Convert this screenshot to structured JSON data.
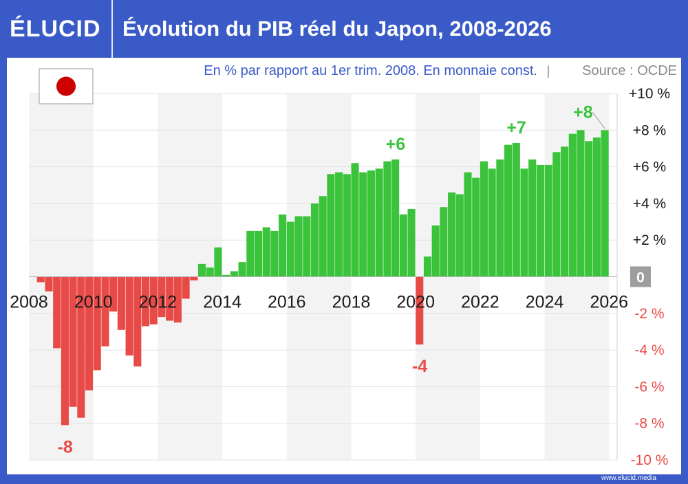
{
  "brand": {
    "logo_text": "ÉLUCID",
    "url_text": "www.elucid.media"
  },
  "header": {
    "title": "Évolution du PIB réel du Japon, 2008-2026"
  },
  "colors": {
    "header_blue": "#3a5bc7",
    "positive": "#3cc33c",
    "negative": "#e84b47",
    "subtitle_blue": "#3a5bc7",
    "source_grey": "#8a8a8a",
    "flag_red": "#cc0000"
  },
  "icons": {
    "flag": "japan-flag-icon"
  },
  "chart_data": {
    "type": "bar",
    "subtitle": "En % par rapport au 1er trim. 2008. En monnaie const.",
    "separator": "|",
    "source": "Source : OCDE",
    "unit": "%",
    "ylim": [
      -10,
      10
    ],
    "xlim": [
      2008,
      2026.25
    ],
    "x_ticks": [
      "2008",
      "2010",
      "2012",
      "2014",
      "2016",
      "2018",
      "2020",
      "2022",
      "2024",
      "2026"
    ],
    "y_ticks": [
      "+10 %",
      "+8 %",
      "+6 %",
      "+4 %",
      "+2 %",
      "0",
      "-2 %",
      "-4 %",
      "-6 %",
      "-8 %",
      "-10 %"
    ],
    "values": [
      0,
      -0.3,
      -0.8,
      -3.9,
      -8.1,
      -7.1,
      -7.7,
      -6.2,
      -5.1,
      -3.8,
      -1.9,
      -2.9,
      -4.3,
      -4.9,
      -2.7,
      -2.6,
      -2.2,
      -2.4,
      -2.5,
      -1.2,
      -0.2,
      0.7,
      0.5,
      1.6,
      0.1,
      0.3,
      0.8,
      2.5,
      2.5,
      2.7,
      2.5,
      3.4,
      3.0,
      3.3,
      3.3,
      4.0,
      4.4,
      5.6,
      5.7,
      5.6,
      6.2,
      5.7,
      5.8,
      5.9,
      6.3,
      6.4,
      3.4,
      3.7,
      -3.7,
      1.1,
      2.8,
      3.8,
      4.6,
      4.5,
      5.7,
      5.4,
      6.3,
      5.9,
      6.4,
      7.2,
      7.3,
      5.9,
      6.4,
      6.1,
      6.1,
      6.8,
      7.1,
      7.8,
      8.0,
      7.4,
      7.6,
      8.0
    ],
    "annotations": [
      {
        "label": "-8",
        "index": 4
      },
      {
        "label": "+6",
        "index": 45
      },
      {
        "label": "-4",
        "index": 48
      },
      {
        "label": "+7",
        "index": 60
      },
      {
        "label": "+8",
        "index": 71
      }
    ],
    "shaded_years": [
      2008,
      2012,
      2016,
      2020,
      2024
    ],
    "grid": true
  }
}
